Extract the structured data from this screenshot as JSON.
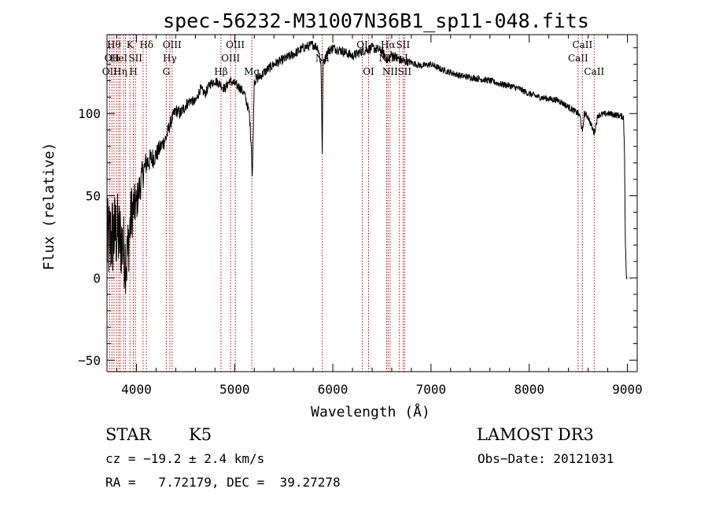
{
  "chart_data": {
    "type": "line",
    "title": "spec-56232-M31007N36B1_sp11-048.fits",
    "xlabel": "Wavelength (Å)",
    "ylabel": "Flux (relative)",
    "xlim": [
      3700,
      9100
    ],
    "ylim": [
      -57,
      148
    ],
    "x_ticks": [
      4000,
      5000,
      6000,
      7000,
      8000,
      9000
    ],
    "x_tick_labels": [
      "4000",
      "5000",
      "6000",
      "7000",
      "8000",
      "9000"
    ],
    "y_ticks": [
      -50,
      0,
      50,
      100
    ],
    "y_tick_labels": [
      "−50",
      "0",
      "50",
      "100"
    ],
    "line_color": "#000000",
    "marker_color": "#cc0000",
    "spectrum_anchors": {
      "x": [
        3700,
        3750,
        3800,
        3850,
        3900,
        3950,
        4000,
        4050,
        4100,
        4150,
        4200,
        4250,
        4300,
        4350,
        4400,
        4450,
        4500,
        4550,
        4600,
        4650,
        4700,
        4750,
        4800,
        4850,
        4900,
        4950,
        5000,
        5050,
        5100,
        5150,
        5170,
        5180,
        5200,
        5250,
        5300,
        5400,
        5500,
        5600,
        5700,
        5800,
        5850,
        5880,
        5893,
        5900,
        5950,
        6000,
        6100,
        6200,
        6300,
        6400,
        6500,
        6563,
        6600,
        6700,
        6800,
        6900,
        7000,
        7100,
        7200,
        7300,
        7400,
        7500,
        7600,
        7700,
        7800,
        7900,
        8000,
        8100,
        8200,
        8300,
        8400,
        8498,
        8520,
        8542,
        8560,
        8600,
        8662,
        8700,
        8800,
        8900,
        8960,
        8970,
        8980,
        8990,
        9000
      ],
      "y": [
        20,
        25,
        28,
        22,
        10,
        40,
        45,
        60,
        70,
        72,
        75,
        80,
        85,
        95,
        102,
        100,
        105,
        108,
        107,
        115,
        112,
        118,
        120,
        118,
        115,
        120,
        118,
        116,
        112,
        100,
        80,
        60,
        120,
        122,
        125,
        130,
        133,
        136,
        140,
        142,
        140,
        130,
        75,
        130,
        138,
        140,
        138,
        135,
        138,
        140,
        138,
        132,
        136,
        132,
        131,
        129,
        130,
        127,
        125,
        123,
        122,
        121,
        120,
        118,
        117,
        115,
        112,
        110,
        109,
        108,
        104,
        100,
        98,
        88,
        100,
        98,
        88,
        99,
        100,
        99,
        98,
        80,
        20,
        0,
        0
      ],
      "noise": [
        28,
        28,
        26,
        24,
        22,
        18,
        12,
        10,
        8,
        7,
        6,
        5,
        5,
        4,
        4,
        4,
        4,
        3,
        3,
        3,
        3,
        3,
        3,
        3,
        3,
        3,
        3,
        3,
        3,
        3,
        3,
        3,
        3,
        3,
        3,
        3,
        3,
        3,
        3,
        3,
        3,
        3,
        3,
        3,
        3,
        3,
        3,
        3,
        3,
        3,
        3,
        3,
        3,
        3,
        2,
        2,
        2,
        2,
        2,
        2,
        2,
        2,
        2,
        2,
        2,
        2,
        2,
        2,
        2,
        2,
        2,
        2,
        2,
        2,
        2,
        2,
        2,
        2,
        2,
        2,
        2,
        2,
        2,
        2,
        0
      ]
    },
    "line_markers": [
      {
        "x": 3727,
        "label": "OII",
        "row": 2
      },
      {
        "x": 3750,
        "label": "OII",
        "row": 1
      },
      {
        "x": 3771,
        "label": "Hθ",
        "row": 0
      },
      {
        "x": 3798,
        "label": "",
        "row": -1
      },
      {
        "x": 3820,
        "label": "HeI",
        "row": 1
      },
      {
        "x": 3835,
        "label": "Hη",
        "row": 2
      },
      {
        "x": 3869,
        "label": "",
        "row": -1
      },
      {
        "x": 3889,
        "label": "",
        "row": -1
      },
      {
        "x": 3934,
        "label": "K",
        "row": 0
      },
      {
        "x": 3969,
        "label": "H",
        "row": 2
      },
      {
        "x": 3990,
        "label": "SII",
        "row": 1
      },
      {
        "x": 4068,
        "label": "",
        "row": -1
      },
      {
        "x": 4102,
        "label": "Hδ",
        "row": 0
      },
      {
        "x": 4304,
        "label": "G",
        "row": 2
      },
      {
        "x": 4340,
        "label": "Hγ",
        "row": 1
      },
      {
        "x": 4363,
        "label": "OIII",
        "row": 0
      },
      {
        "x": 4861,
        "label": "Hβ",
        "row": 2
      },
      {
        "x": 4959,
        "label": "OIII",
        "row": 1
      },
      {
        "x": 5007,
        "label": "OIII",
        "row": 0
      },
      {
        "x": 5175,
        "label": "Mg",
        "row": 2
      },
      {
        "x": 5893,
        "label": "Na",
        "row": 1
      },
      {
        "x": 6300,
        "label": "OI",
        "row": 0
      },
      {
        "x": 6364,
        "label": "OI",
        "row": 2
      },
      {
        "x": 6548,
        "label": "NII",
        "row": 1
      },
      {
        "x": 6563,
        "label": "Hα",
        "row": 0
      },
      {
        "x": 6583,
        "label": "NII",
        "row": 2
      },
      {
        "x": 6678,
        "label": "HeI",
        "row": 1
      },
      {
        "x": 6716,
        "label": "SII",
        "row": 0
      },
      {
        "x": 6731,
        "label": "SII",
        "row": 2
      },
      {
        "x": 8498,
        "label": "CaII",
        "row": 1
      },
      {
        "x": 8542,
        "label": "CaII",
        "row": 0
      },
      {
        "x": 8662,
        "label": "CaII",
        "row": 2
      }
    ]
  },
  "info": {
    "object_class": "STAR",
    "subclass": "K5",
    "survey": "LAMOST DR3",
    "redshift_line": "cz = −19.2 ± 2.4 km/s",
    "obs_date_line": "Obs−Date: 20121031",
    "ra_dec_line": "RA =   7.72179, DEC =  39.27278"
  }
}
